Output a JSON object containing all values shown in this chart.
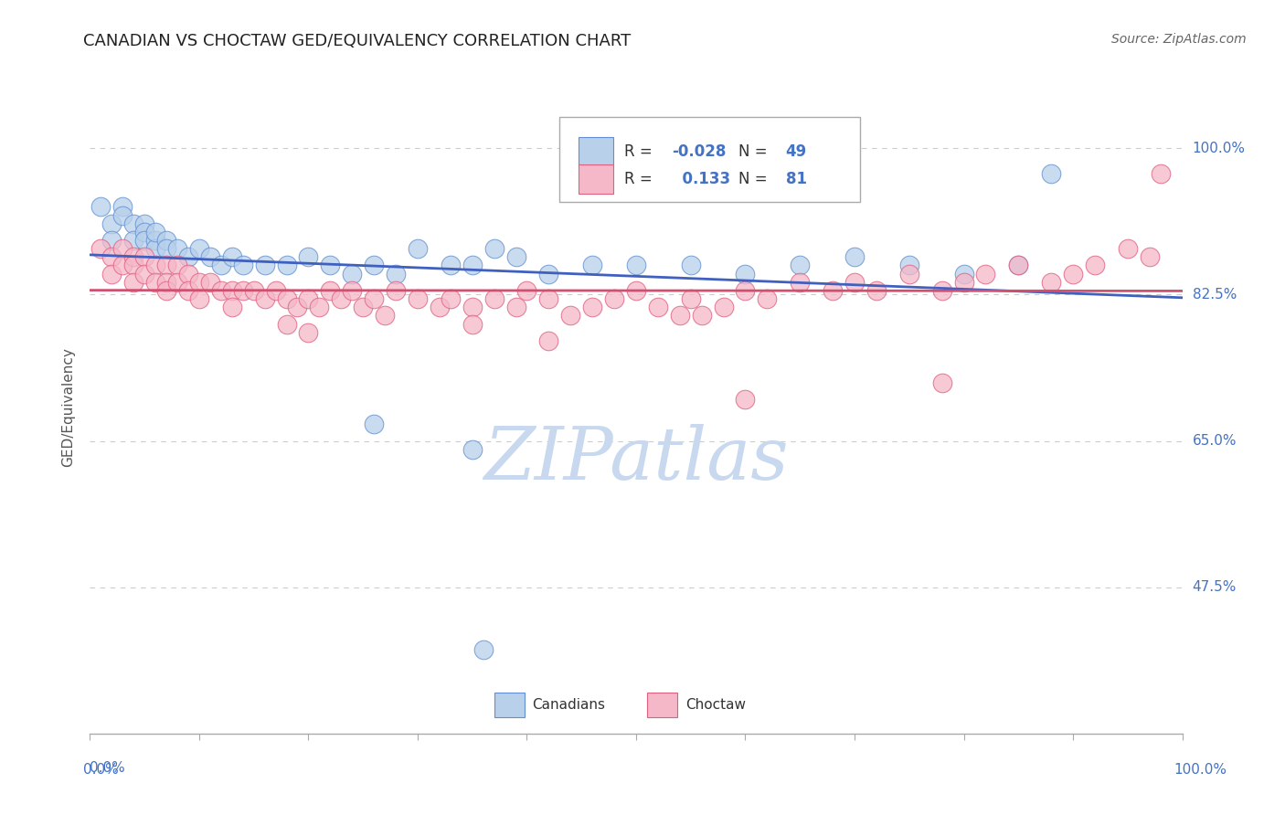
{
  "title": "CANADIAN VS CHOCTAW GED/EQUIVALENCY CORRELATION CHART",
  "source": "Source: ZipAtlas.com",
  "ylabel": "GED/Equivalency",
  "ytick_labels": [
    "100.0%",
    "82.5%",
    "65.0%",
    "47.5%"
  ],
  "ytick_values": [
    1.0,
    0.825,
    0.65,
    0.475
  ],
  "xmin": 0.0,
  "xmax": 1.0,
  "ymin": 0.3,
  "ymax": 1.08,
  "legend_R1": "-0.028",
  "legend_N1": "49",
  "legend_R2": "0.133",
  "legend_N2": "81",
  "blue_fill": "#b8d0ea",
  "pink_fill": "#f4b8c8",
  "blue_edge": "#6090d0",
  "pink_edge": "#e06080",
  "blue_line": "#4060c0",
  "pink_line": "#d05070",
  "label_color": "#4472c4",
  "axis_label_color": "#555555",
  "watermark_color": "#c8d8ee",
  "grid_color": "#cccccc",
  "title_color": "#222222",
  "legend_text_color": "#333333"
}
